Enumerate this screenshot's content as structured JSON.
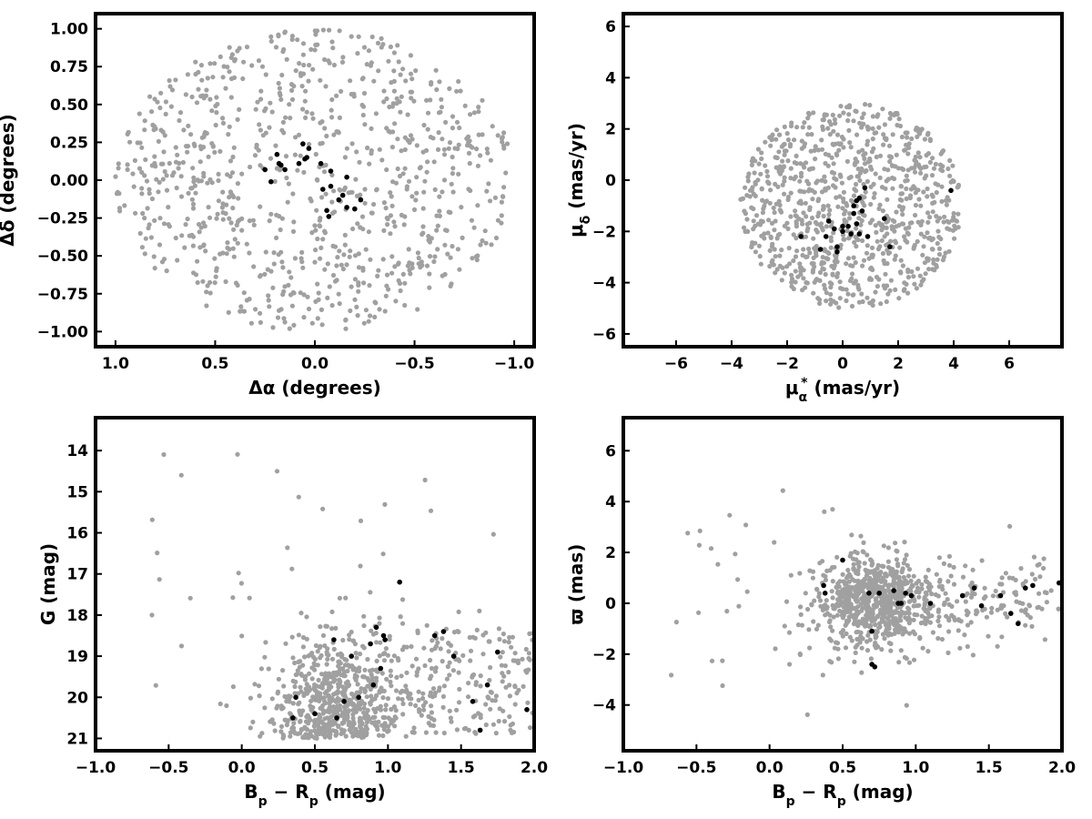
{
  "chart_data": [
    {
      "type": "scatter",
      "id": "sky",
      "xlabel": "Δα (degrees)",
      "ylabel": "Δδ (degrees)",
      "xlim": [
        1.1,
        -1.1
      ],
      "ylim": [
        -1.1,
        1.1
      ],
      "xticks": [
        1.0,
        0.5,
        0.0,
        -0.5,
        -1.0
      ],
      "xtick_labels": [
        "1.0",
        "0.5",
        "0.0",
        "−0.5",
        "−1.0"
      ],
      "yticks": [
        1.0,
        0.75,
        0.5,
        0.25,
        0.0,
        -0.25,
        -0.5,
        -0.75,
        -1.0
      ],
      "ytick_labels": [
        "1.00",
        "0.75",
        "0.50",
        "0.25",
        "0.00",
        "−0.25",
        "−0.50",
        "−0.75",
        "−1.00"
      ],
      "grid": false,
      "background": {
        "distribution": "uniform-disk",
        "center": [
          0,
          0
        ],
        "radius": 1.0,
        "count": 900,
        "color": "#a0a0a0"
      },
      "members": {
        "color": "#000000",
        "points": [
          [
            0.25,
            0.07
          ],
          [
            0.22,
            -0.01
          ],
          [
            0.19,
            0.17
          ],
          [
            0.18,
            0.11
          ],
          [
            0.17,
            0.1
          ],
          [
            0.15,
            0.07
          ],
          [
            0.08,
            0.11
          ],
          [
            0.06,
            0.24
          ],
          [
            0.05,
            0.14
          ],
          [
            0.04,
            0.15
          ],
          [
            0.03,
            0.21
          ],
          [
            -0.03,
            0.11
          ],
          [
            -0.04,
            -0.06
          ],
          [
            -0.08,
            -0.04
          ],
          [
            -0.08,
            0.06
          ],
          [
            -0.06,
            -0.2
          ],
          [
            -0.07,
            -0.24
          ],
          [
            -0.12,
            -0.13
          ],
          [
            -0.14,
            -0.1
          ],
          [
            -0.16,
            0.02
          ],
          [
            -0.16,
            -0.18
          ],
          [
            -0.2,
            -0.19
          ],
          [
            -0.23,
            -0.13
          ]
        ]
      }
    },
    {
      "type": "scatter",
      "id": "pm",
      "xlabel": "μ",
      "xlabel_sub": "α",
      "xlabel_sup": "*",
      "xlabel_unit": " (mas/yr)",
      "ylabel": "μ",
      "ylabel_sub": "δ",
      "ylabel_unit": " (mas/yr)",
      "xlim": [
        -7.9,
        7.9
      ],
      "ylim": [
        -6.5,
        6.5
      ],
      "xticks": [
        -6,
        -4,
        -2,
        0,
        2,
        4,
        6
      ],
      "xtick_labels": [
        "−6",
        "−4",
        "−2",
        "0",
        "2",
        "4",
        "6"
      ],
      "yticks": [
        6,
        4,
        2,
        0,
        -2,
        -4,
        -6
      ],
      "ytick_labels": [
        "6",
        "4",
        "2",
        "0",
        "−2",
        "−4",
        "−6"
      ],
      "grid": false,
      "background": {
        "distribution": "uniform-disk",
        "center": [
          0.3,
          -1.0
        ],
        "radius": 4.0,
        "count": 900,
        "color": "#a0a0a0"
      },
      "members": {
        "color": "#000000",
        "points": [
          [
            -1.5,
            -2.2
          ],
          [
            -0.8,
            -2.7
          ],
          [
            -0.6,
            -2.2
          ],
          [
            -0.5,
            -1.6
          ],
          [
            -0.3,
            -1.9
          ],
          [
            -0.2,
            -2.6
          ],
          [
            -0.2,
            -2.8
          ],
          [
            0.0,
            -1.8
          ],
          [
            0.0,
            -2.0
          ],
          [
            0.2,
            -1.8
          ],
          [
            0.3,
            -2.1
          ],
          [
            0.4,
            -1.3
          ],
          [
            0.4,
            -1.0
          ],
          [
            0.5,
            -0.8
          ],
          [
            0.5,
            -1.7
          ],
          [
            0.6,
            -0.7
          ],
          [
            0.6,
            -2.1
          ],
          [
            0.7,
            -1.2
          ],
          [
            0.8,
            -0.3
          ],
          [
            0.9,
            -2.2
          ],
          [
            1.5,
            -1.5
          ],
          [
            1.7,
            -2.6
          ],
          [
            3.9,
            -0.4
          ]
        ]
      }
    },
    {
      "type": "scatter",
      "id": "cmd",
      "xlabel": "B",
      "xlabel_sub1": "p",
      "xlabel_mid": " − R",
      "xlabel_sub2": "p",
      "xlabel_unit": " (mag)",
      "ylabel": "G (mag)",
      "xlim": [
        -1.0,
        2.0
      ],
      "ylim": [
        21.3,
        13.2
      ],
      "xticks": [
        -1.0,
        -0.5,
        0.0,
        0.5,
        1.0,
        1.5,
        2.0
      ],
      "xtick_labels": [
        "−1.0",
        "−0.5",
        "0.0",
        "0.5",
        "1.0",
        "1.5",
        "2.0"
      ],
      "yticks": [
        21,
        20,
        19,
        18,
        17,
        16,
        15,
        14
      ],
      "ytick_labels": [
        "21",
        "20",
        "19",
        "18",
        "17",
        "16",
        "15",
        "14"
      ],
      "grid": false,
      "background": {
        "distribution": "cmd",
        "count": 900,
        "color": "#a0a0a0"
      },
      "members": {
        "color": "#000000",
        "points": [
          [
            0.35,
            20.5
          ],
          [
            0.37,
            20.0
          ],
          [
            0.5,
            20.4
          ],
          [
            0.63,
            18.6
          ],
          [
            0.65,
            20.5
          ],
          [
            0.7,
            20.1
          ],
          [
            0.75,
            19.0
          ],
          [
            0.8,
            20.0
          ],
          [
            0.88,
            18.7
          ],
          [
            0.9,
            19.7
          ],
          [
            0.92,
            18.3
          ],
          [
            0.95,
            19.3
          ],
          [
            0.97,
            18.5
          ],
          [
            0.98,
            18.6
          ],
          [
            1.08,
            17.2
          ],
          [
            1.32,
            18.5
          ],
          [
            1.38,
            18.4
          ],
          [
            1.45,
            19.0
          ],
          [
            1.58,
            20.1
          ],
          [
            1.63,
            20.8
          ],
          [
            1.68,
            19.7
          ],
          [
            1.75,
            18.9
          ],
          [
            1.95,
            20.3
          ]
        ]
      }
    },
    {
      "type": "scatter",
      "id": "parallax",
      "xlabel": "B",
      "xlabel_sub1": "p",
      "xlabel_mid": " − R",
      "xlabel_sub2": "p",
      "xlabel_unit": " (mag)",
      "ylabel": "ϖ (mas)",
      "xlim": [
        -1.0,
        2.0
      ],
      "ylim": [
        -5.8,
        7.3
      ],
      "xticks": [
        -1.0,
        -0.5,
        0.0,
        0.5,
        1.0,
        1.5,
        2.0
      ],
      "xtick_labels": [
        "−1.0",
        "−0.5",
        "0.0",
        "0.5",
        "1.0",
        "1.5",
        "2.0"
      ],
      "yticks": [
        6,
        4,
        2,
        0,
        -2,
        -4
      ],
      "ytick_labels": [
        "6",
        "4",
        "2",
        "0",
        "−2",
        "−4"
      ],
      "grid": false,
      "background": {
        "distribution": "parallax",
        "count": 900,
        "color": "#a0a0a0"
      },
      "members": {
        "color": "#000000",
        "points": [
          [
            0.37,
            0.7
          ],
          [
            0.38,
            0.4
          ],
          [
            0.5,
            1.7
          ],
          [
            0.68,
            0.4
          ],
          [
            0.7,
            -1.1
          ],
          [
            0.7,
            -2.4
          ],
          [
            0.72,
            -2.5
          ],
          [
            0.75,
            0.4
          ],
          [
            0.85,
            0.5
          ],
          [
            0.88,
            0.0
          ],
          [
            0.9,
            0.0
          ],
          [
            0.93,
            0.4
          ],
          [
            0.97,
            0.3
          ],
          [
            1.1,
            0.0
          ],
          [
            1.32,
            0.3
          ],
          [
            1.4,
            0.6
          ],
          [
            1.45,
            -0.1
          ],
          [
            1.58,
            0.3
          ],
          [
            1.65,
            -0.4
          ],
          [
            1.7,
            -0.8
          ],
          [
            1.75,
            0.6
          ],
          [
            1.8,
            0.7
          ],
          [
            1.98,
            0.8
          ]
        ]
      }
    }
  ]
}
